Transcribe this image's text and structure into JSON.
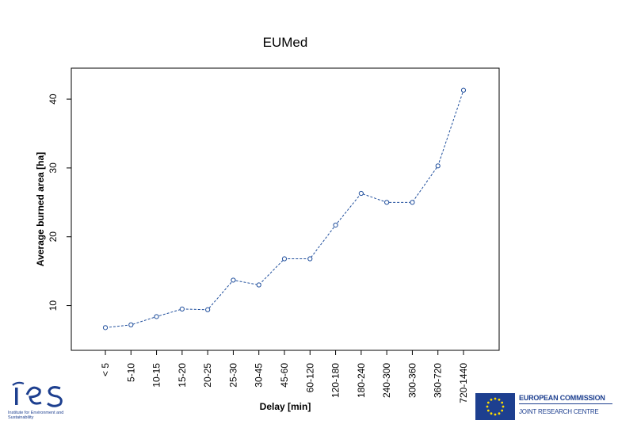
{
  "chart_data": {
    "type": "line",
    "title": "EUMed",
    "xlabel": "Delay [min]",
    "ylabel": "Average burned area [ha]",
    "categories": [
      "< 5",
      "5-10",
      "10-15",
      "15-20",
      "20-25",
      "25-30",
      "30-45",
      "45-60",
      "60-120",
      "120-180",
      "180-240",
      "240-300",
      "300-360",
      "360-720",
      "720-1440"
    ],
    "values": [
      6.8,
      7.2,
      8.4,
      9.5,
      9.4,
      13.7,
      13.0,
      16.8,
      16.8,
      21.7,
      26.3,
      25.0,
      25.0,
      30.3,
      41.3
    ],
    "ylim": [
      3.5,
      44.5
    ],
    "yticks": [
      10,
      20,
      30,
      40
    ],
    "line_color": "#1f4e9c",
    "line_style": "dashed",
    "marker": "open-circle",
    "grid": false
  },
  "logos": {
    "ies": {
      "mark": "ies",
      "text": "Institute for Environment and Sustainability"
    },
    "ec": {
      "line1": "EUROPEAN COMMISSION",
      "line2": "JOINT RESEARCH CENTRE"
    }
  },
  "colors": {
    "ec_blue": "#1d3f8f",
    "eu_star": "#ffdd00",
    "ies_blue": "#1d3f8f"
  }
}
